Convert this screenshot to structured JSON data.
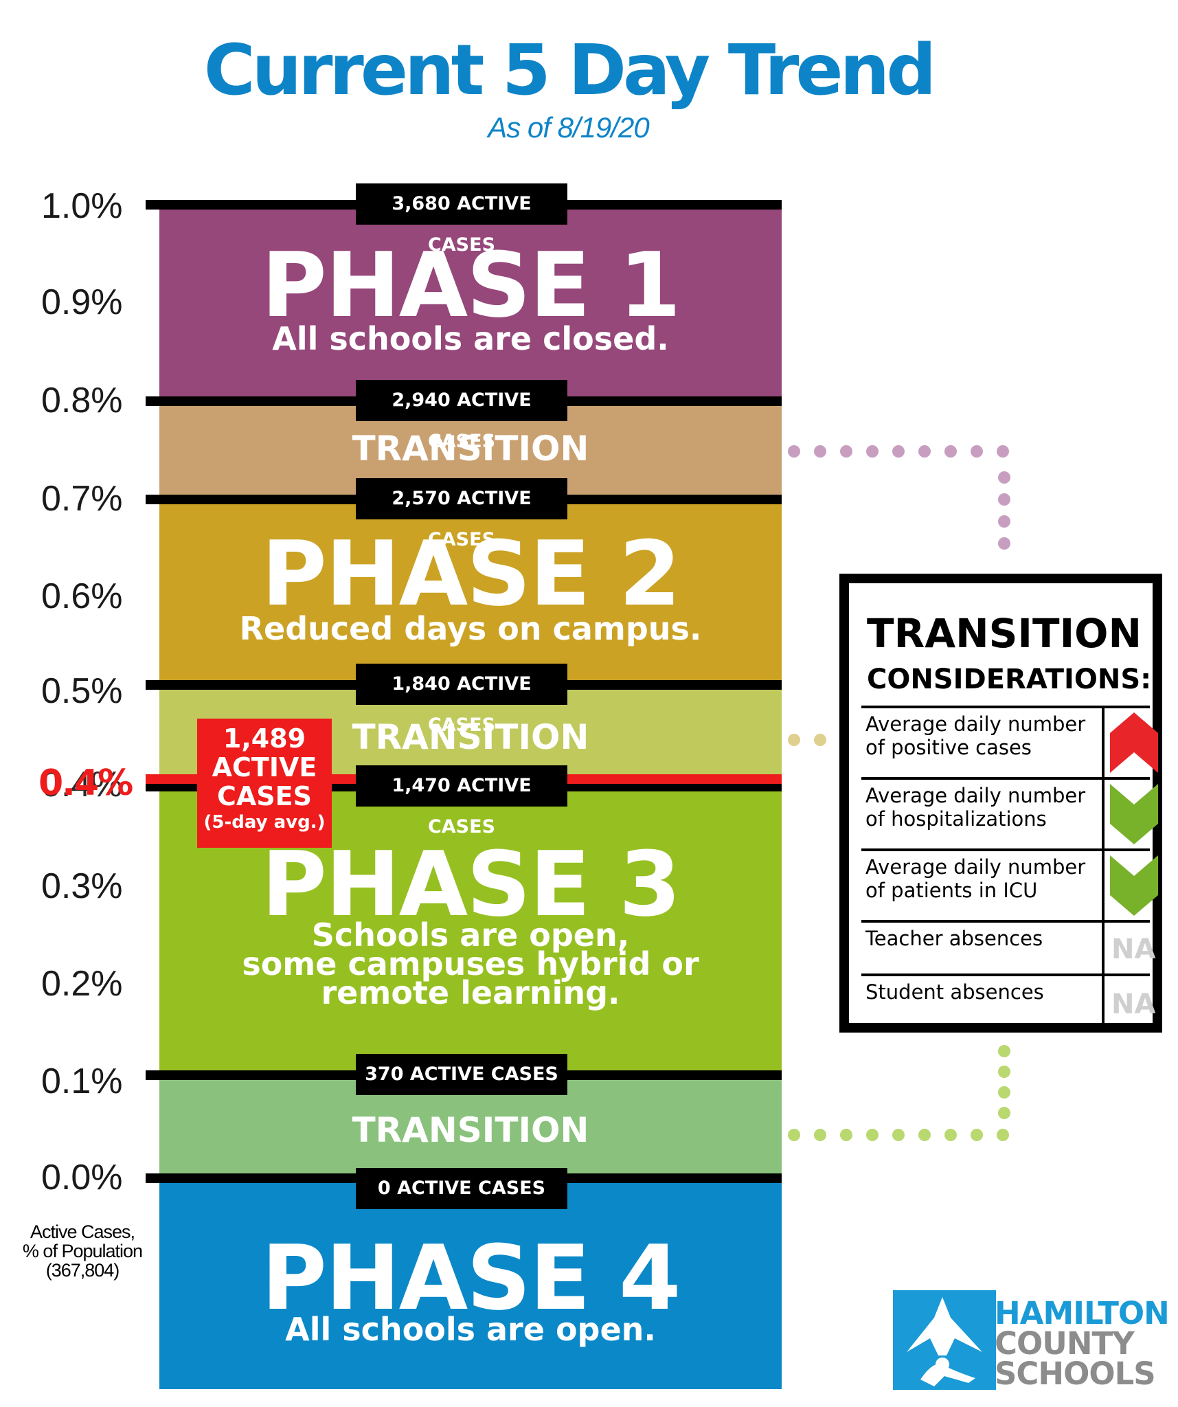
{
  "header": {
    "title": "Current 5 Day Trend",
    "subtitle": "As of 8/19/20"
  },
  "axis": {
    "ticks": [
      "1.0%",
      "0.9%",
      "0.8%",
      "0.7%",
      "0.6%",
      "0.5%",
      "0.4%",
      "0.3%",
      "0.2%",
      "0.1%",
      "0.0%"
    ],
    "label_line1": "Active Cases,",
    "label_line2": "% of Population",
    "label_line3": "(367,804)"
  },
  "thresholds": {
    "t100": "3,680 ACTIVE CASES",
    "t80": "2,940 ACTIVE CASES",
    "t70": "2,570 ACTIVE CASES",
    "t50": "1,840 ACTIVE CASES",
    "t40": "1,470 ACTIVE CASES",
    "t10": "370 ACTIVE CASES",
    "t0": "0 ACTIVE CASES"
  },
  "phases": {
    "p1": {
      "title": "PHASE 1",
      "desc": "All schools are closed.",
      "color": "#96487a"
    },
    "trans1": {
      "label": "TRANSITION",
      "color": "#c9a070"
    },
    "p2": {
      "title": "PHASE 2",
      "desc": "Reduced days on campus.",
      "color": "#cba224"
    },
    "trans2": {
      "label": "TRANSITION",
      "color": "#c0c95c"
    },
    "p3": {
      "title": "PHASE 3",
      "desc_line1": "Schools are open,",
      "desc_line2": "some campuses hybrid or",
      "desc_line3": "remote learning.",
      "color": "#96c021"
    },
    "trans3": {
      "label": "TRANSITION",
      "color": "#8ac27d"
    },
    "p4": {
      "title": "PHASE 4",
      "desc": "All schools are open.",
      "color": "#0b88c8"
    }
  },
  "current": {
    "value_label": "0.4%",
    "line1": "1,489",
    "line2": "ACTIVE",
    "line3": "CASES",
    "line4": "(5-day avg.)",
    "color": "#ee1c1c"
  },
  "considerations": {
    "title_line1": "TRANSITION",
    "title_line2": "CONSIDERATIONS:",
    "rows": [
      {
        "line1": "Average daily number",
        "line2": "of positive cases",
        "indicator": "up-arrow-icon",
        "indicator_color": "#e8262a"
      },
      {
        "line1": "Average daily number",
        "line2": "of hospitalizations",
        "indicator": "down-arrow-icon",
        "indicator_color": "#78b22a"
      },
      {
        "line1": "Average daily number",
        "line2": "of patients in ICU",
        "indicator": "down-arrow-icon",
        "indicator_color": "#78b22a"
      },
      {
        "line1": "Teacher absences",
        "line2": "",
        "indicator": "NA"
      },
      {
        "line1": "Student absences",
        "line2": "",
        "indicator": "NA"
      }
    ]
  },
  "logo": {
    "line1": "HAMILTON",
    "line2": "COUNTY",
    "line3": "SCHOOLS",
    "color_line1": "#1a9ad6",
    "color_rest": "#8c8c8c"
  }
}
